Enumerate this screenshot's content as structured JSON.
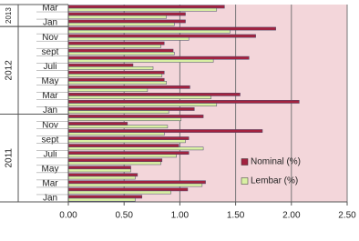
{
  "chart_data": {
    "type": "bar",
    "orientation": "horizontal",
    "groups": [
      {
        "name": "2011",
        "categories": [
          "Jan",
          null,
          "Mar",
          null,
          "May",
          null,
          "Juli",
          null,
          "sept",
          null,
          "Nov",
          null
        ]
      },
      {
        "name": "2012",
        "categories": [
          "Jan",
          null,
          "Mar",
          null,
          "May",
          null,
          "Juli",
          null,
          "sept",
          null,
          "Nov",
          null
        ]
      },
      {
        "name": "2013",
        "categories": [
          "Jan",
          null,
          "Mar"
        ]
      }
    ],
    "series": [
      {
        "name": "Nominal (%)",
        "color": "#a3223f",
        "values": [
          0.66,
          1.07,
          1.23,
          0.62,
          0.56,
          0.84,
          1.08,
          0.99,
          1.08,
          1.74,
          0.53,
          1.21,
          1.13,
          2.07,
          1.54,
          1.09,
          0.86,
          0.86,
          0.58,
          1.62,
          0.94,
          0.86,
          1.68,
          1.86,
          1.05,
          1.05,
          1.4
        ]
      },
      {
        "name": "Lembar (%)",
        "color": "#d9f0a3",
        "values": [
          0.6,
          0.92,
          1.2,
          0.6,
          0.56,
          0.83,
          0.97,
          1.21,
          1.05,
          0.86,
          0.89,
          1.01,
          0.9,
          1.33,
          1.28,
          0.71,
          0.88,
          0.84,
          0.76,
          1.3,
          0.95,
          0.83,
          1.08,
          1.45,
          0.95,
          0.88,
          1.33
        ]
      }
    ],
    "xlim": [
      0,
      2.5
    ],
    "xticks": [
      {
        "value": 0,
        "label": "0.00"
      },
      {
        "value": 0.5,
        "label": "0.50"
      },
      {
        "value": 1,
        "label": "1.00"
      },
      {
        "value": 1.5,
        "label": "1.50"
      },
      {
        "value": 2,
        "label": "2.00"
      },
      {
        "value": 2.5,
        "label": "2.50"
      }
    ],
    "grid": true,
    "legend": "lower-right",
    "plot_background": "#f3d6da"
  }
}
